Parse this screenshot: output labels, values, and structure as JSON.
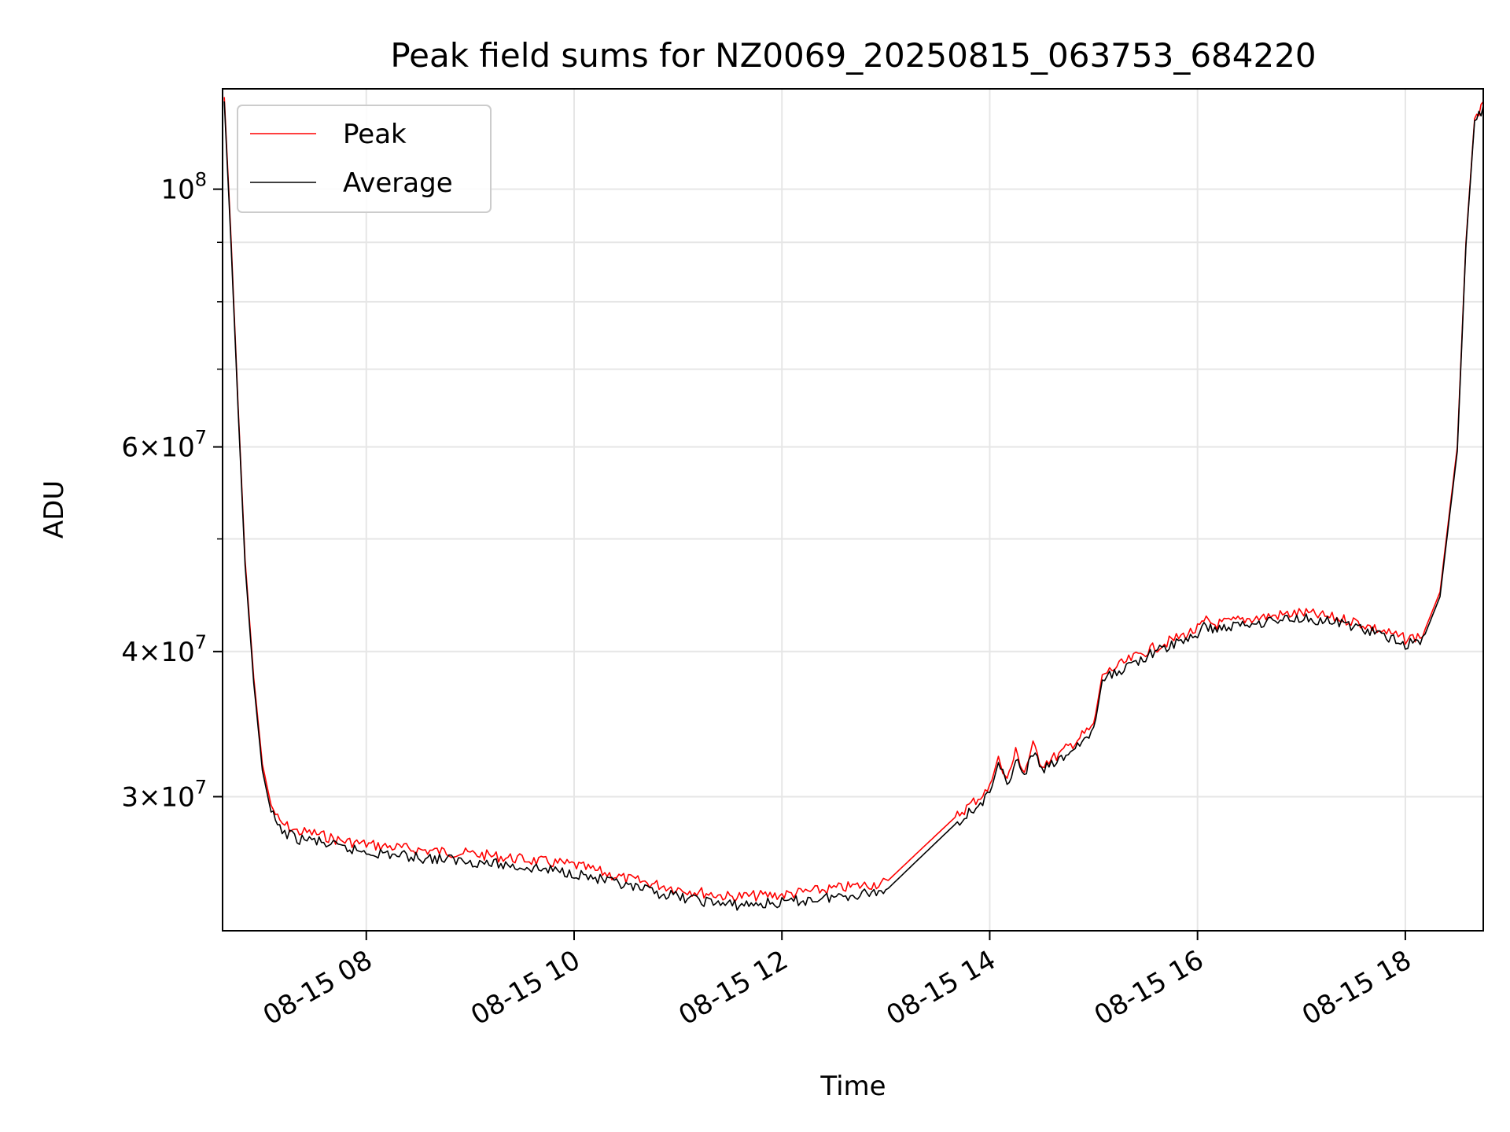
{
  "chart_data": {
    "type": "line",
    "title": "Peak field sums for NZ0069_20250815_063753_684220",
    "xlabel": "Time",
    "ylabel": "ADU",
    "yscale": "log",
    "grid": true,
    "legend_position": "top-left",
    "xlim": [
      "2025-08-15 06:37",
      "2025-08-15 18:45"
    ],
    "ylim": [
      23000000,
      122000000
    ],
    "x_ticks": [
      {
        "value": "2025-08-15 08:00",
        "label": "08-15 08"
      },
      {
        "value": "2025-08-15 10:00",
        "label": "08-15 10"
      },
      {
        "value": "2025-08-15 12:00",
        "label": "08-15 12"
      },
      {
        "value": "2025-08-15 14:00",
        "label": "08-15 14"
      },
      {
        "value": "2025-08-15 16:00",
        "label": "08-15 16"
      },
      {
        "value": "2025-08-15 18:00",
        "label": "08-15 18"
      }
    ],
    "y_ticks": [
      {
        "value": 30000000,
        "mant": "3",
        "exp": "7"
      },
      {
        "value": 40000000,
        "mant": "4",
        "exp": "7"
      },
      {
        "value": 60000000,
        "mant": "6",
        "exp": "7"
      },
      {
        "value": 100000000,
        "mant": "",
        "exp": "8"
      }
    ],
    "y_minor_ticks": [
      50000000,
      70000000,
      80000000,
      90000000
    ],
    "series": [
      {
        "name": "Peak",
        "color": "#ff0000",
        "x": [
          "2025-08-15 06:38",
          "2025-08-15 06:42",
          "2025-08-15 06:46",
          "2025-08-15 06:50",
          "2025-08-15 06:55",
          "2025-08-15 07:00",
          "2025-08-15 07:05",
          "2025-08-15 07:10",
          "2025-08-15 07:20",
          "2025-08-15 07:30",
          "2025-08-15 07:45",
          "2025-08-15 08:00",
          "2025-08-15 08:30",
          "2025-08-15 09:00",
          "2025-08-15 09:30",
          "2025-08-15 10:00",
          "2025-08-15 10:30",
          "2025-08-15 11:00",
          "2025-08-15 11:30",
          "2025-08-15 12:00",
          "2025-08-15 12:30",
          "2025-08-15 13:00",
          "2025-08-15 13:20",
          "2025-08-15 13:40",
          "2025-08-15 14:00",
          "2025-08-15 14:05",
          "2025-08-15 14:10",
          "2025-08-15 14:15",
          "2025-08-15 14:20",
          "2025-08-15 14:25",
          "2025-08-15 14:30",
          "2025-08-15 14:40",
          "2025-08-15 15:00",
          "2025-08-15 15:05",
          "2025-08-15 15:30",
          "2025-08-15 16:00",
          "2025-08-15 16:05",
          "2025-08-15 16:10",
          "2025-08-15 16:30",
          "2025-08-15 17:00",
          "2025-08-15 17:30",
          "2025-08-15 18:00",
          "2025-08-15 18:10",
          "2025-08-15 18:20",
          "2025-08-15 18:30",
          "2025-08-15 18:35",
          "2025-08-15 18:40",
          "2025-08-15 18:45"
        ],
        "values": [
          120000000,
          90000000,
          65000000,
          48000000,
          38000000,
          32000000,
          29500000,
          28500000,
          28000000,
          27900000,
          27500000,
          27300000,
          27000000,
          26800000,
          26500000,
          26200000,
          25500000,
          25000000,
          24600000,
          24700000,
          25000000,
          25300000,
          27000000,
          28800000,
          30500000,
          32500000,
          31000000,
          32800000,
          31500000,
          33200000,
          32000000,
          32600000,
          34500000,
          38200000,
          40000000,
          41800000,
          42500000,
          42200000,
          42700000,
          43200000,
          42500000,
          41000000,
          41300000,
          45000000,
          60000000,
          90000000,
          115000000,
          118000000
        ]
      },
      {
        "name": "Average",
        "color": "#000000",
        "x": [
          "2025-08-15 06:38",
          "2025-08-15 06:42",
          "2025-08-15 06:46",
          "2025-08-15 06:50",
          "2025-08-15 06:55",
          "2025-08-15 07:00",
          "2025-08-15 07:05",
          "2025-08-15 07:10",
          "2025-08-15 07:20",
          "2025-08-15 07:30",
          "2025-08-15 07:45",
          "2025-08-15 08:00",
          "2025-08-15 08:30",
          "2025-08-15 09:00",
          "2025-08-15 09:30",
          "2025-08-15 10:00",
          "2025-08-15 10:30",
          "2025-08-15 11:00",
          "2025-08-15 11:30",
          "2025-08-15 12:00",
          "2025-08-15 12:30",
          "2025-08-15 13:00",
          "2025-08-15 13:20",
          "2025-08-15 13:40",
          "2025-08-15 14:00",
          "2025-08-15 14:05",
          "2025-08-15 14:10",
          "2025-08-15 14:15",
          "2025-08-15 14:20",
          "2025-08-15 14:25",
          "2025-08-15 14:30",
          "2025-08-15 14:40",
          "2025-08-15 15:00",
          "2025-08-15 15:05",
          "2025-08-15 15:30",
          "2025-08-15 16:00",
          "2025-08-15 16:05",
          "2025-08-15 16:10",
          "2025-08-15 16:30",
          "2025-08-15 17:00",
          "2025-08-15 17:30",
          "2025-08-15 18:00",
          "2025-08-15 18:10",
          "2025-08-15 18:20",
          "2025-08-15 18:30",
          "2025-08-15 18:35",
          "2025-08-15 18:40",
          "2025-08-15 18:45"
        ],
        "values": [
          119000000,
          89000000,
          64500000,
          47500000,
          37600000,
          31600000,
          29100000,
          28100000,
          27600000,
          27500000,
          27100000,
          26900000,
          26600000,
          26400000,
          26100000,
          25800000,
          25100000,
          24600000,
          24200000,
          24300000,
          24600000,
          24900000,
          26600000,
          28400000,
          30100000,
          32100000,
          30600000,
          32400000,
          31100000,
          32800000,
          31600000,
          32200000,
          34100000,
          37800000,
          39600000,
          41400000,
          42100000,
          41800000,
          42300000,
          42800000,
          42100000,
          40600000,
          40900000,
          44600000,
          59500000,
          89500000,
          114500000,
          117500000
        ]
      }
    ]
  }
}
